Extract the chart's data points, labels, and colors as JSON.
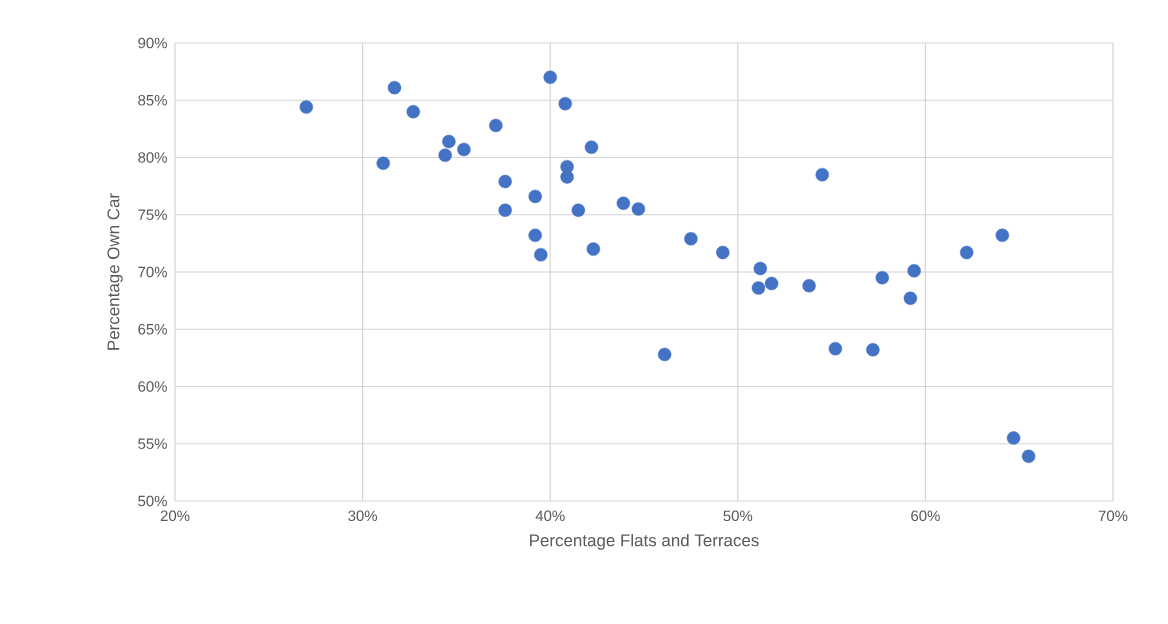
{
  "chart_data": {
    "type": "scatter",
    "xlabel": "Percentage Flats and Terraces",
    "ylabel": "Percentage Own Car",
    "x": [
      27.0,
      31.7,
      31.1,
      32.7,
      34.6,
      34.4,
      35.4,
      37.1,
      37.6,
      37.6,
      39.2,
      39.2,
      39.5,
      40.0,
      40.8,
      40.9,
      40.9,
      41.5,
      42.2,
      42.3,
      43.9,
      44.7,
      46.1,
      47.5,
      49.2,
      51.2,
      51.1,
      51.8,
      53.8,
      54.5,
      55.2,
      57.2,
      57.7,
      59.2,
      59.4,
      62.2,
      64.1,
      64.7,
      65.5
    ],
    "values": [
      84.4,
      86.1,
      79.5,
      84.0,
      81.4,
      80.2,
      80.7,
      82.8,
      77.9,
      75.4,
      76.6,
      73.2,
      71.5,
      87.0,
      84.7,
      79.2,
      78.3,
      75.4,
      80.9,
      72.0,
      76.0,
      75.5,
      62.8,
      72.9,
      71.7,
      70.3,
      68.6,
      69.0,
      68.8,
      78.5,
      63.3,
      63.2,
      69.5,
      67.7,
      70.1,
      71.7,
      73.2,
      55.5,
      53.9
    ],
    "color": "#4472c4",
    "marker": "circle",
    "grid": true,
    "xlim": [
      20,
      70
    ],
    "ylim": [
      50,
      90
    ],
    "xticks": [
      {
        "value": 20,
        "label": "20%"
      },
      {
        "value": 30,
        "label": "30%"
      },
      {
        "value": 40,
        "label": "40%"
      },
      {
        "value": 50,
        "label": "50%"
      },
      {
        "value": 60,
        "label": "60%"
      },
      {
        "value": 70,
        "label": "70%"
      }
    ],
    "yticks": [
      {
        "value": 50,
        "label": "50%"
      },
      {
        "value": 55,
        "label": "55%"
      },
      {
        "value": 60,
        "label": "60%"
      },
      {
        "value": 65,
        "label": "65%"
      },
      {
        "value": 70,
        "label": "70%"
      },
      {
        "value": 75,
        "label": "75%"
      },
      {
        "value": 80,
        "label": "80%"
      },
      {
        "value": 85,
        "label": "85%"
      },
      {
        "value": 90,
        "label": "90%"
      }
    ]
  }
}
